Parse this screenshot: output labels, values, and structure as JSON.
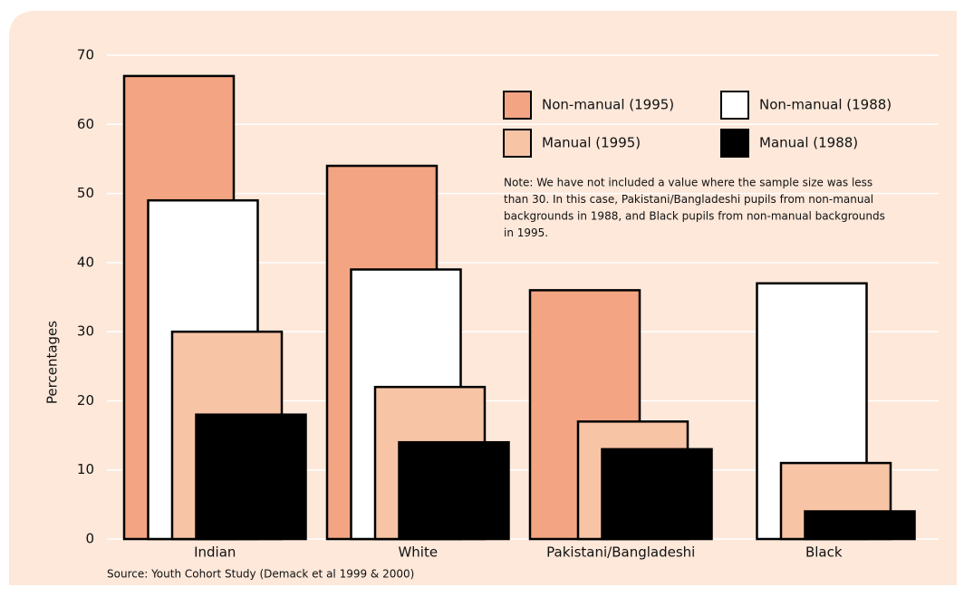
{
  "chart_data": {
    "type": "bar",
    "y_label": "Percentages",
    "categories": [
      "Indian",
      "White",
      "Pakistani/Bangladeshi",
      "Black"
    ],
    "series": [
      {
        "name": "Non-manual (1995)",
        "color": "#f3a583",
        "values": [
          67,
          54,
          36,
          null
        ]
      },
      {
        "name": "Non-manual (1988)",
        "color": "#ffffff",
        "values": [
          49,
          39,
          null,
          37
        ]
      },
      {
        "name": "Manual (1995)",
        "color": "#f8c4a6",
        "values": [
          30,
          22,
          17,
          11
        ]
      },
      {
        "name": "Manual (1988)",
        "color": "#000000",
        "values": [
          18,
          14,
          13,
          4
        ]
      }
    ],
    "ylim": [
      0,
      70
    ],
    "yticks": [
      0,
      10,
      20,
      30,
      40,
      50,
      60,
      70
    ],
    "grid": true,
    "note": [
      "Note: We have not included a value where the sample size was less",
      "than 30. In this case, Pakistani/Bangladeshi pupils from non-manual",
      "backgrounds in 1988, and Black pupils from non-manual backgrounds",
      "in 1995."
    ],
    "source": "Source: Youth Cohort Study (Demack et al 1999 & 2000)"
  }
}
